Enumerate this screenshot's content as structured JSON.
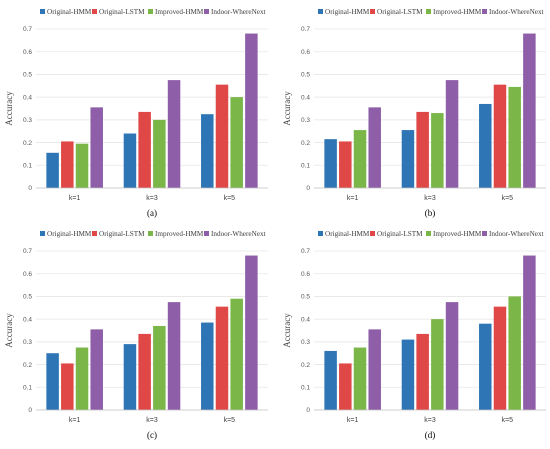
{
  "figure": {
    "colors": {
      "Original-HMM": "#2e75b6",
      "Original-LSTM": "#e04848",
      "Improved-HMM": "#7ab648",
      "Indoor-WhereNext": "#8e5fa8"
    },
    "legend": [
      "Original-HMM",
      "Original-LSTM",
      "Improved-HMM",
      "Indoor-WhereNext"
    ]
  },
  "chart_data": [
    {
      "type": "bar",
      "panel_label": "(a)",
      "ylabel": "Accuracy",
      "ylim": [
        0,
        0.7
      ],
      "yticks": [
        "0",
        "0.1",
        "0.2",
        "0.3",
        "0.4",
        "0.5",
        "0.6",
        "0.7"
      ],
      "categories": [
        "k=1",
        "k=3",
        "k=5"
      ],
      "series": [
        {
          "name": "Original-HMM",
          "values": [
            0.155,
            0.24,
            0.325
          ]
        },
        {
          "name": "Original-LSTM",
          "values": [
            0.205,
            0.335,
            0.455
          ]
        },
        {
          "name": "Improved-HMM",
          "values": [
            0.195,
            0.3,
            0.4
          ]
        },
        {
          "name": "Indoor-WhereNext",
          "values": [
            0.355,
            0.475,
            0.68
          ]
        }
      ]
    },
    {
      "type": "bar",
      "panel_label": "(b)",
      "ylabel": "Accuracy",
      "ylim": [
        0,
        0.7
      ],
      "yticks": [
        "0",
        "0.1",
        "0.2",
        "0.3",
        "0.4",
        "0.5",
        "0.6",
        "0.7"
      ],
      "categories": [
        "k=1",
        "k=3",
        "k=5"
      ],
      "series": [
        {
          "name": "Original-HMM",
          "values": [
            0.215,
            0.255,
            0.37
          ]
        },
        {
          "name": "Original-LSTM",
          "values": [
            0.205,
            0.335,
            0.455
          ]
        },
        {
          "name": "Improved-HMM",
          "values": [
            0.255,
            0.33,
            0.445
          ]
        },
        {
          "name": "Indoor-WhereNext",
          "values": [
            0.355,
            0.475,
            0.68
          ]
        }
      ]
    },
    {
      "type": "bar",
      "panel_label": "(c)",
      "ylabel": "Accuracy",
      "ylim": [
        0,
        0.7
      ],
      "yticks": [
        "0",
        "0.1",
        "0.2",
        "0.3",
        "0.4",
        "0.5",
        "0.6",
        "0.7"
      ],
      "categories": [
        "k=1",
        "k=3",
        "k=5"
      ],
      "series": [
        {
          "name": "Original-HMM",
          "values": [
            0.25,
            0.29,
            0.385
          ]
        },
        {
          "name": "Original-LSTM",
          "values": [
            0.205,
            0.335,
            0.455
          ]
        },
        {
          "name": "Improved-HMM",
          "values": [
            0.275,
            0.37,
            0.49
          ]
        },
        {
          "name": "Indoor-WhereNext",
          "values": [
            0.355,
            0.475,
            0.68
          ]
        }
      ]
    },
    {
      "type": "bar",
      "panel_label": "(d)",
      "ylabel": "Accuracy",
      "ylim": [
        0,
        0.7
      ],
      "yticks": [
        "0",
        "0.1",
        "0.2",
        "0.3",
        "0.4",
        "0.5",
        "0.6",
        "0.7"
      ],
      "categories": [
        "k=1",
        "k=3",
        "k=5"
      ],
      "series": [
        {
          "name": "Original-HMM",
          "values": [
            0.26,
            0.31,
            0.38
          ]
        },
        {
          "name": "Original-LSTM",
          "values": [
            0.205,
            0.335,
            0.455
          ]
        },
        {
          "name": "Improved-HMM",
          "values": [
            0.275,
            0.4,
            0.5
          ]
        },
        {
          "name": "Indoor-WhereNext",
          "values": [
            0.355,
            0.475,
            0.68
          ]
        }
      ]
    }
  ]
}
